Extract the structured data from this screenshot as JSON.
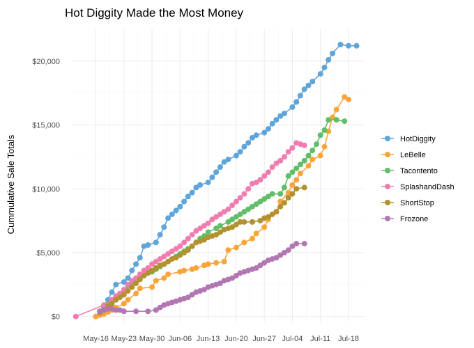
{
  "chart_data": {
    "type": "line",
    "title": "Hot Diggity Made the Most Money",
    "xlabel": "",
    "ylabel": "Cummulative Sale Totals",
    "x_start": "May-11",
    "x_tick_days": [
      5,
      12,
      19,
      26,
      33,
      40,
      47,
      54,
      61,
      68
    ],
    "x_tick_labels": [
      "May-16",
      "May-23",
      "May-30",
      "Jun-06",
      "Jun-13",
      "Jun-20",
      "Jun-27",
      "Jul-04",
      "Jul-11",
      "Jul-18"
    ],
    "xlim_days": [
      -1,
      72
    ],
    "y_ticks": [
      0,
      5000,
      10000,
      15000,
      20000
    ],
    "y_tick_labels": [
      "$0",
      "$5,000",
      "$10,000",
      "$15,000",
      "$20,000"
    ],
    "ylim": [
      -400,
      22500
    ],
    "grid": true,
    "legend_position": "right",
    "series": [
      {
        "name": "HotDiggity",
        "color": "#5DA5DA",
        "points": [
          [
            5,
            0
          ],
          [
            6,
            400
          ],
          [
            7,
            800
          ],
          [
            8,
            1300
          ],
          [
            9,
            1900
          ],
          [
            10,
            2500
          ],
          [
            12,
            2700
          ],
          [
            13,
            3000
          ],
          [
            14,
            3600
          ],
          [
            15,
            4100
          ],
          [
            16,
            4600
          ],
          [
            17,
            5500
          ],
          [
            18,
            5600
          ],
          [
            20,
            5800
          ],
          [
            21,
            6400
          ],
          [
            22,
            7000
          ],
          [
            23,
            7700
          ],
          [
            24,
            8000
          ],
          [
            25,
            8300
          ],
          [
            26,
            8600
          ],
          [
            27,
            9000
          ],
          [
            28,
            9400
          ],
          [
            29,
            9700
          ],
          [
            30,
            10100
          ],
          [
            31,
            10300
          ],
          [
            33,
            10500
          ],
          [
            34,
            10900
          ],
          [
            35,
            11300
          ],
          [
            36,
            11700
          ],
          [
            37,
            12100
          ],
          [
            38,
            12300
          ],
          [
            40,
            12600
          ],
          [
            41,
            12900
          ],
          [
            42,
            13300
          ],
          [
            43,
            13600
          ],
          [
            44,
            14000
          ],
          [
            45,
            14200
          ],
          [
            47,
            14400
          ],
          [
            48,
            14700
          ],
          [
            49,
            15100
          ],
          [
            50,
            15400
          ],
          [
            51,
            15700
          ],
          [
            52,
            15900
          ],
          [
            54,
            16400
          ],
          [
            55,
            16800
          ],
          [
            56,
            17300
          ],
          [
            57,
            17800
          ],
          [
            58,
            18100
          ],
          [
            59,
            18400
          ],
          [
            61,
            19000
          ],
          [
            62,
            19500
          ],
          [
            63,
            20100
          ],
          [
            64,
            20600
          ],
          [
            66,
            21300
          ],
          [
            68,
            21200
          ],
          [
            70,
            21200
          ]
        ]
      },
      {
        "name": "LeBelle",
        "color": "#FAA43A",
        "points": [
          [
            5,
            0
          ],
          [
            6,
            100
          ],
          [
            7,
            200
          ],
          [
            8,
            350
          ],
          [
            9,
            500
          ],
          [
            10,
            700
          ],
          [
            12,
            1000
          ],
          [
            13,
            1300
          ],
          [
            15,
            1800
          ],
          [
            16,
            2200
          ],
          [
            19,
            2300
          ],
          [
            20,
            2800
          ],
          [
            22,
            3000
          ],
          [
            23,
            3300
          ],
          [
            26,
            3500
          ],
          [
            27,
            3600
          ],
          [
            29,
            3700
          ],
          [
            30,
            3800
          ],
          [
            32,
            4000
          ],
          [
            33,
            4100
          ],
          [
            35,
            4200
          ],
          [
            37,
            4300
          ],
          [
            38,
            5200
          ],
          [
            40,
            5400
          ],
          [
            42,
            5800
          ],
          [
            44,
            6100
          ],
          [
            45,
            6500
          ],
          [
            47,
            7000
          ],
          [
            48,
            7600
          ],
          [
            50,
            8200
          ],
          [
            51,
            9000
          ],
          [
            53,
            9700
          ],
          [
            54,
            10300
          ],
          [
            55,
            10700
          ],
          [
            56,
            11200
          ],
          [
            58,
            11800
          ],
          [
            59,
            12300
          ],
          [
            61,
            12600
          ],
          [
            62,
            13300
          ],
          [
            63,
            14500
          ],
          [
            64,
            15600
          ],
          [
            65,
            16200
          ],
          [
            67,
            17200
          ],
          [
            68,
            17000
          ]
        ]
      },
      {
        "name": "Tacontento",
        "color": "#60BD68",
        "points": [
          [
            6,
            400
          ],
          [
            7,
            700
          ],
          [
            8,
            1000
          ],
          [
            10,
            1400
          ],
          [
            11,
            1700
          ],
          [
            12,
            2000
          ],
          [
            13,
            2400
          ],
          [
            14,
            2700
          ],
          [
            15,
            2900
          ],
          [
            16,
            3000
          ],
          [
            17,
            3200
          ],
          [
            18,
            3400
          ],
          [
            19,
            3500
          ],
          [
            20,
            3700
          ],
          [
            21,
            3900
          ],
          [
            22,
            4100
          ],
          [
            23,
            4300
          ],
          [
            24,
            4500
          ],
          [
            25,
            4700
          ],
          [
            26,
            4900
          ],
          [
            27,
            5100
          ],
          [
            28,
            5300
          ],
          [
            29,
            5500
          ],
          [
            30,
            5800
          ],
          [
            31,
            6100
          ],
          [
            32,
            6300
          ],
          [
            33,
            6600
          ],
          [
            35,
            6900
          ],
          [
            36,
            7100
          ],
          [
            38,
            7400
          ],
          [
            39,
            7600
          ],
          [
            40,
            7800
          ],
          [
            41,
            8000
          ],
          [
            42,
            8200
          ],
          [
            43,
            8400
          ],
          [
            44,
            8600
          ],
          [
            45,
            8800
          ],
          [
            46,
            9000
          ],
          [
            47,
            9200
          ],
          [
            48,
            9400
          ],
          [
            49,
            9600
          ],
          [
            51,
            9600
          ],
          [
            52,
            10100
          ],
          [
            53,
            11000
          ],
          [
            54,
            11300
          ],
          [
            55,
            11600
          ],
          [
            56,
            11900
          ],
          [
            57,
            12200
          ],
          [
            58,
            12600
          ],
          [
            59,
            13000
          ],
          [
            60,
            13500
          ],
          [
            61,
            14200
          ],
          [
            62,
            14600
          ],
          [
            63,
            15400
          ],
          [
            65,
            15400
          ],
          [
            67,
            15300
          ]
        ]
      },
      {
        "name": "SplashandDash",
        "color": "#F17CB0",
        "points": [
          [
            0,
            0
          ],
          [
            7,
            900
          ],
          [
            9,
            1300
          ],
          [
            10,
            1600
          ],
          [
            11,
            1800
          ],
          [
            12,
            2100
          ],
          [
            13,
            2500
          ],
          [
            14,
            2800
          ],
          [
            15,
            3000
          ],
          [
            16,
            3300
          ],
          [
            17,
            3600
          ],
          [
            18,
            3800
          ],
          [
            19,
            4100
          ],
          [
            20,
            4300
          ],
          [
            21,
            4500
          ],
          [
            22,
            4700
          ],
          [
            23,
            4900
          ],
          [
            24,
            5100
          ],
          [
            25,
            5300
          ],
          [
            26,
            5500
          ],
          [
            27,
            5800
          ],
          [
            28,
            6100
          ],
          [
            29,
            6400
          ],
          [
            30,
            6700
          ],
          [
            31,
            6900
          ],
          [
            32,
            7100
          ],
          [
            33,
            7300
          ],
          [
            34,
            7600
          ],
          [
            35,
            7800
          ],
          [
            36,
            8000
          ],
          [
            37,
            8200
          ],
          [
            38,
            8400
          ],
          [
            39,
            8700
          ],
          [
            40,
            9000
          ],
          [
            41,
            9300
          ],
          [
            42,
            9600
          ],
          [
            43,
            10000
          ],
          [
            44,
            10400
          ],
          [
            45,
            10500
          ],
          [
            46,
            10700
          ],
          [
            47,
            11000
          ],
          [
            48,
            11300
          ],
          [
            49,
            11700
          ],
          [
            50,
            12000
          ],
          [
            51,
            12200
          ],
          [
            52,
            12500
          ],
          [
            53,
            12900
          ],
          [
            54,
            13200
          ],
          [
            55,
            13600
          ],
          [
            56,
            13500
          ],
          [
            57,
            13400
          ]
        ]
      },
      {
        "name": "ShortStop",
        "color": "#B2912F",
        "points": [
          [
            6,
            300
          ],
          [
            7,
            500
          ],
          [
            8,
            800
          ],
          [
            9,
            1000
          ],
          [
            10,
            1300
          ],
          [
            11,
            1500
          ],
          [
            12,
            1700
          ],
          [
            13,
            2000
          ],
          [
            14,
            2300
          ],
          [
            15,
            2600
          ],
          [
            16,
            2900
          ],
          [
            17,
            3200
          ],
          [
            18,
            3400
          ],
          [
            19,
            3600
          ],
          [
            20,
            3800
          ],
          [
            21,
            4000
          ],
          [
            22,
            4100
          ],
          [
            23,
            4300
          ],
          [
            24,
            4500
          ],
          [
            25,
            4600
          ],
          [
            26,
            4800
          ],
          [
            27,
            5000
          ],
          [
            28,
            5200
          ],
          [
            29,
            5500
          ],
          [
            30,
            5800
          ],
          [
            31,
            5900
          ],
          [
            32,
            6000
          ],
          [
            33,
            6200
          ],
          [
            34,
            6300
          ],
          [
            35,
            6400
          ],
          [
            36,
            6600
          ],
          [
            37,
            6800
          ],
          [
            38,
            6900
          ],
          [
            39,
            7000
          ],
          [
            40,
            7200
          ],
          [
            41,
            7400
          ],
          [
            42,
            7400
          ],
          [
            44,
            7400
          ],
          [
            46,
            7500
          ],
          [
            47,
            7700
          ],
          [
            48,
            7800
          ],
          [
            49,
            8000
          ],
          [
            50,
            8200
          ],
          [
            51,
            8600
          ],
          [
            52,
            8900
          ],
          [
            53,
            9300
          ],
          [
            54,
            9600
          ],
          [
            55,
            10000
          ],
          [
            57,
            10100
          ]
        ]
      },
      {
        "name": "Frozone",
        "color": "#B276B2",
        "points": [
          [
            6,
            400
          ],
          [
            7,
            500
          ],
          [
            8,
            600
          ],
          [
            9,
            600
          ],
          [
            10,
            500
          ],
          [
            11,
            500
          ],
          [
            12,
            400
          ],
          [
            15,
            400
          ],
          [
            18,
            400
          ],
          [
            20,
            500
          ],
          [
            21,
            700
          ],
          [
            22,
            900
          ],
          [
            23,
            1000
          ],
          [
            24,
            1100
          ],
          [
            25,
            1200
          ],
          [
            26,
            1300
          ],
          [
            27,
            1400
          ],
          [
            28,
            1500
          ],
          [
            29,
            1700
          ],
          [
            30,
            1900
          ],
          [
            31,
            2000
          ],
          [
            32,
            2100
          ],
          [
            33,
            2300
          ],
          [
            34,
            2400
          ],
          [
            35,
            2500
          ],
          [
            36,
            2600
          ],
          [
            37,
            2800
          ],
          [
            38,
            2900
          ],
          [
            39,
            3000
          ],
          [
            40,
            3200
          ],
          [
            41,
            3400
          ],
          [
            42,
            3500
          ],
          [
            43,
            3600
          ],
          [
            44,
            3700
          ],
          [
            45,
            3800
          ],
          [
            46,
            4000
          ],
          [
            47,
            4200
          ],
          [
            48,
            4400
          ],
          [
            49,
            4500
          ],
          [
            50,
            4600
          ],
          [
            51,
            4800
          ],
          [
            52,
            5000
          ],
          [
            53,
            5200
          ],
          [
            54,
            5500
          ],
          [
            55,
            5700
          ],
          [
            57,
            5700
          ]
        ]
      }
    ]
  }
}
